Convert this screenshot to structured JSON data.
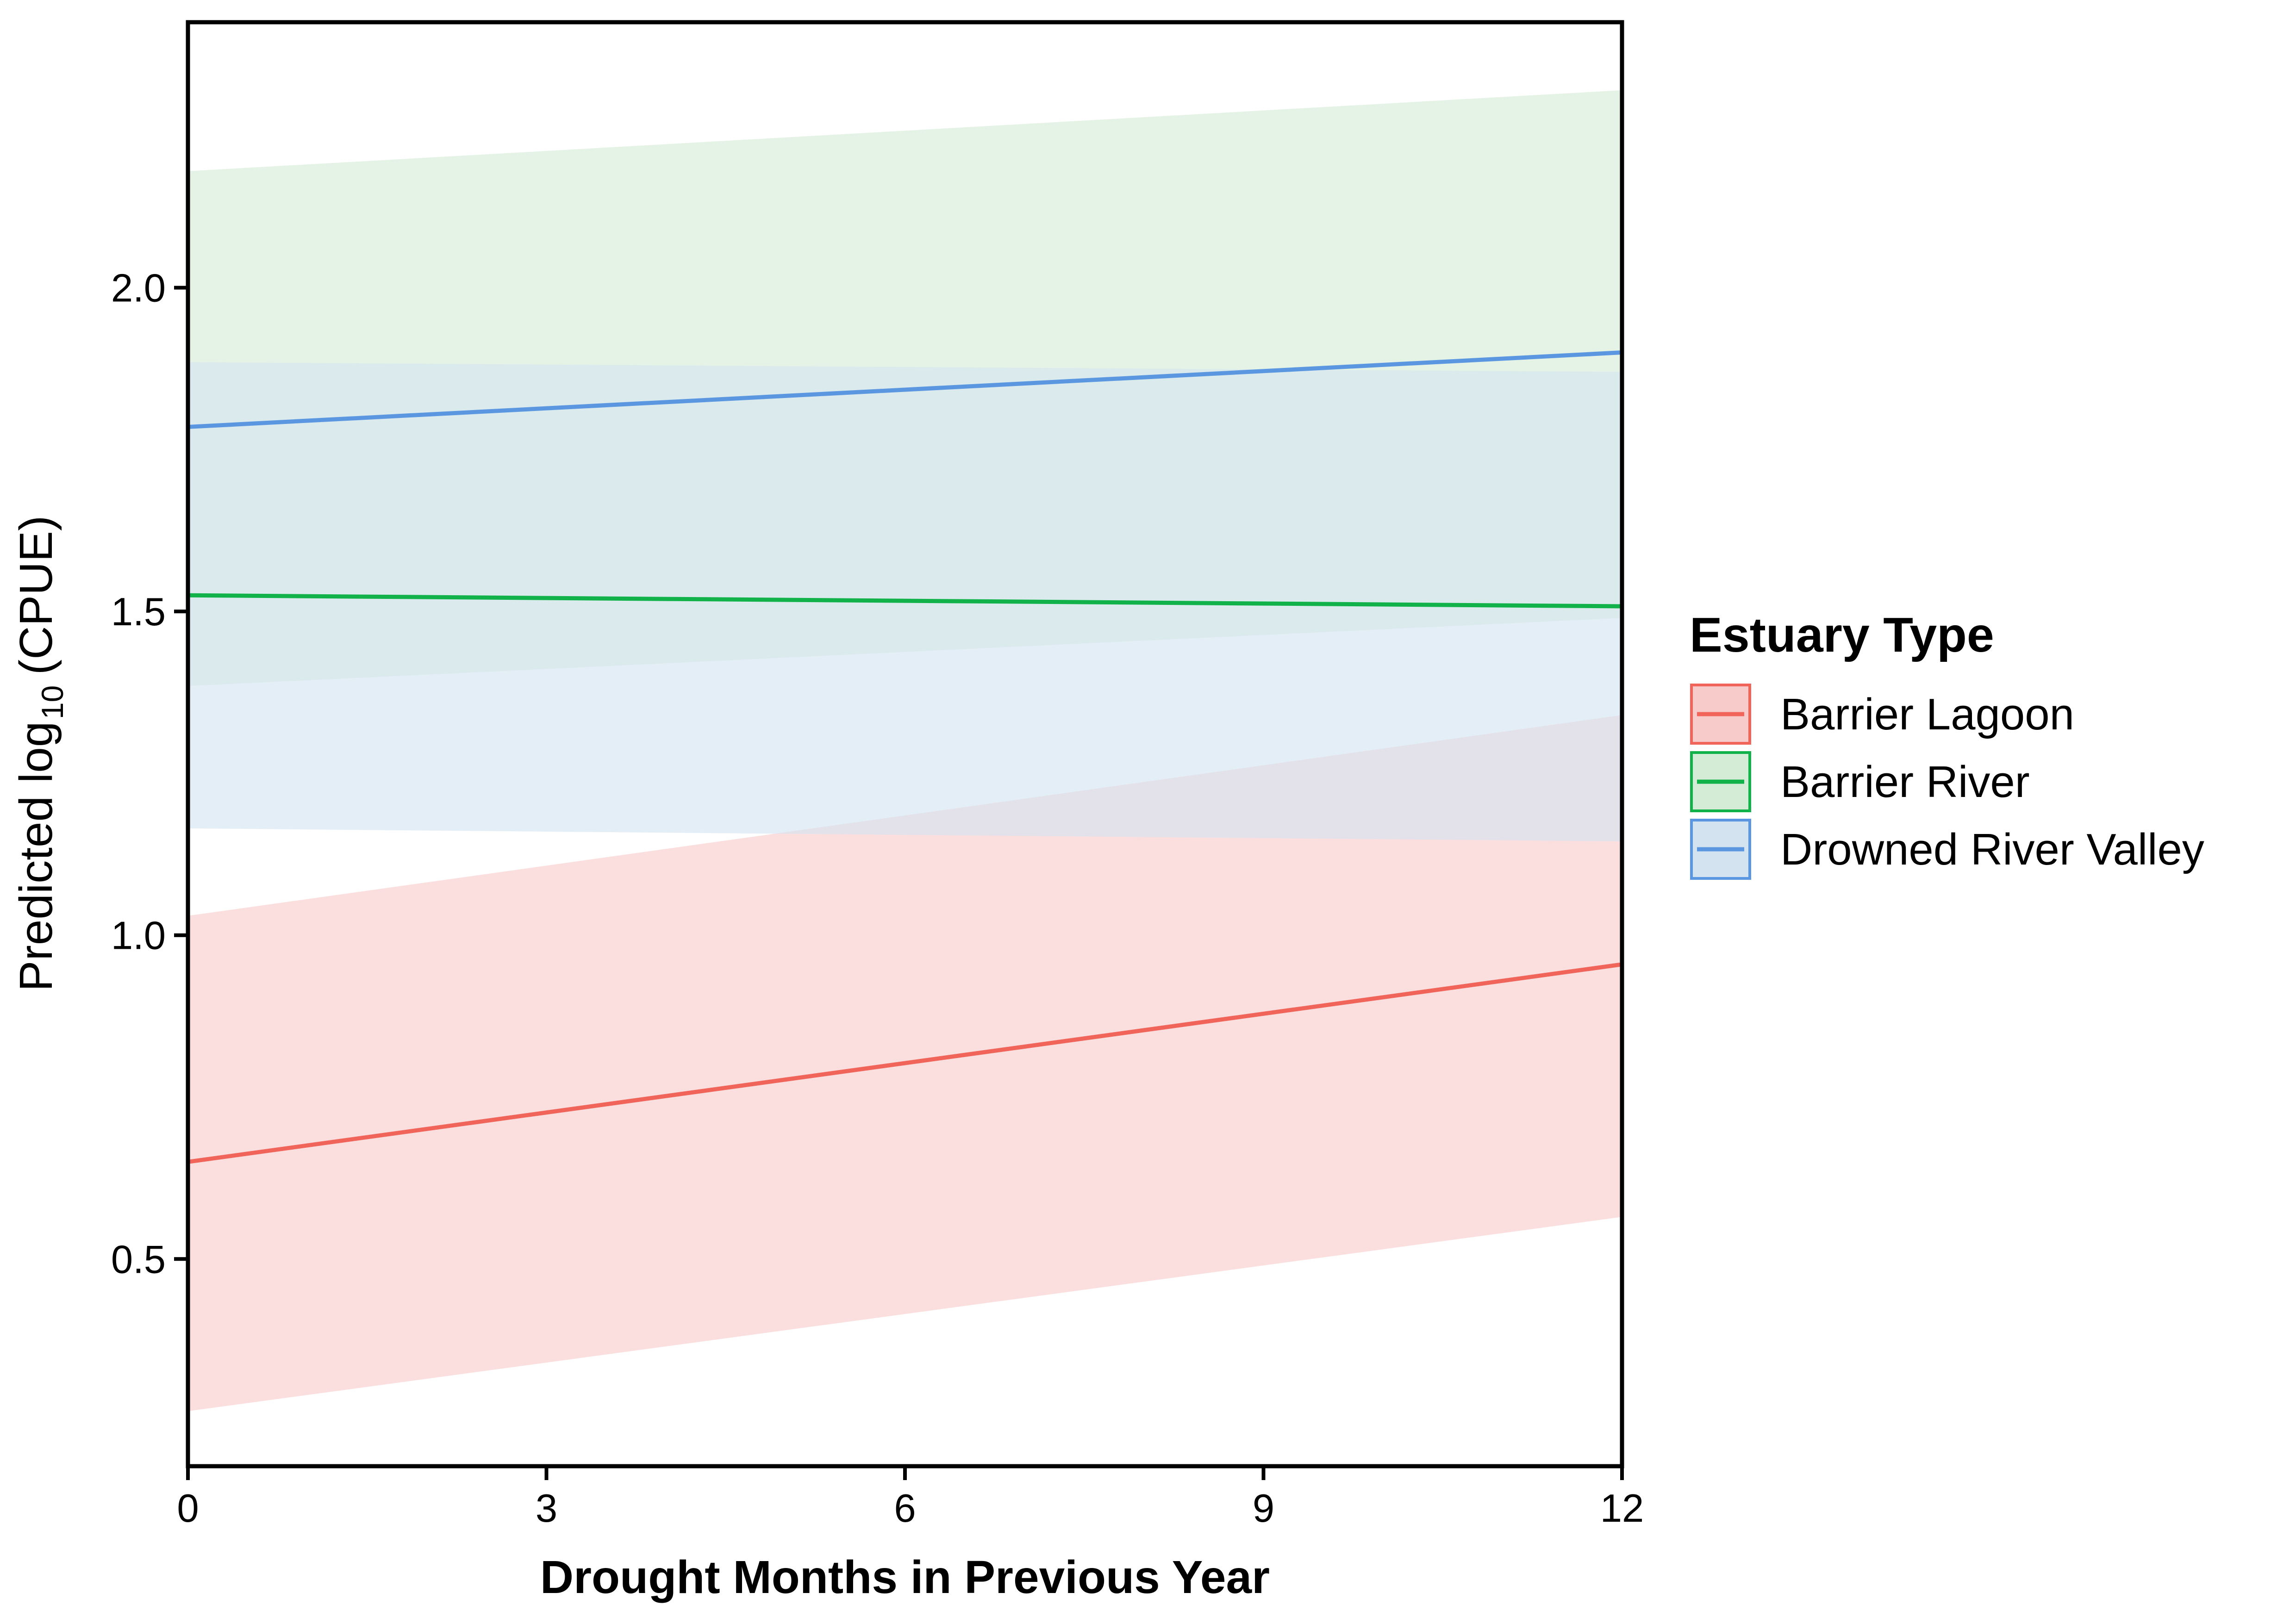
{
  "chart_data": {
    "type": "line",
    "xlabel": "Drought Months in Previous Year",
    "ylabel_prefix": "Predicted log",
    "ylabel_subscript": "10",
    "ylabel_suffix": "(CPUE)",
    "xlim": [
      0,
      12
    ],
    "ylim": [
      0.18,
      2.41
    ],
    "x_ticks": [
      0,
      3,
      6,
      9,
      12
    ],
    "x_tick_labels": [
      "0",
      "3",
      "6",
      "9",
      "12"
    ],
    "y_ticks": [
      0.5,
      1.0,
      1.5,
      2.0
    ],
    "y_tick_labels": [
      "0.5",
      "1.0",
      "1.5",
      "2.0"
    ],
    "grid": false,
    "legend": {
      "title": "Estuary Type",
      "position": "right"
    },
    "series": [
      {
        "name": "Barrier Lagoon",
        "color": "#F0645A",
        "ribbon_color": "#F8CBCB",
        "x": [
          0,
          12
        ],
        "y": [
          0.65,
          0.955
        ],
        "lower": [
          0.265,
          0.565
        ],
        "upper": [
          1.03,
          1.34
        ]
      },
      {
        "name": "Barrier River",
        "color": "#12B24A",
        "ribbon_color": "#D4EBD6",
        "x": [
          0,
          12
        ],
        "y": [
          1.525,
          1.508
        ],
        "lower": [
          1.385,
          1.49
        ],
        "upper": [
          2.18,
          2.305
        ]
      },
      {
        "name": "Drowned River Valley",
        "color": "#5B97E0",
        "ribbon_color": "#D3E4F0",
        "x": [
          0,
          12
        ],
        "y": [
          1.785,
          1.9
        ],
        "lower": [
          1.165,
          1.145
        ],
        "upper": [
          1.885,
          1.87
        ]
      }
    ]
  }
}
